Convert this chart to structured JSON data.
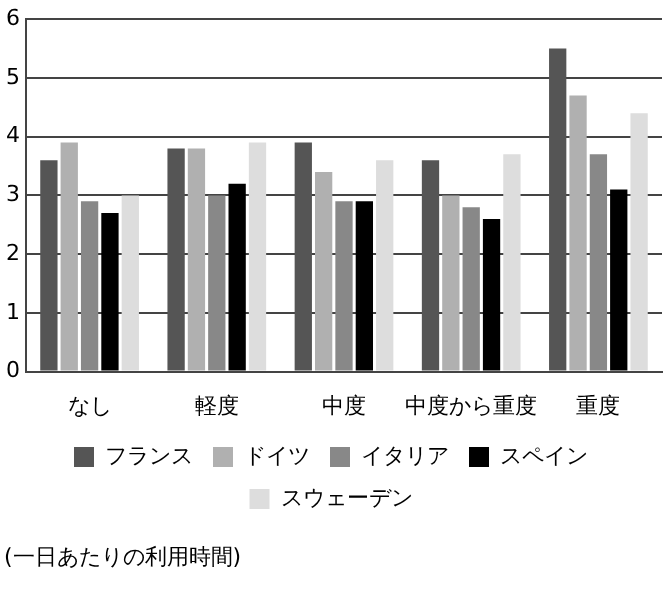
{
  "chart_data": {
    "type": "bar",
    "categories": [
      "なし",
      "軽度",
      "中度",
      "中度から重度",
      "重度"
    ],
    "series": [
      {
        "name": "フランス",
        "color": "#555555",
        "values": [
          3.6,
          3.8,
          3.9,
          3.6,
          5.5
        ]
      },
      {
        "name": "ドイツ",
        "color": "#b0b0b0",
        "values": [
          3.9,
          3.8,
          3.4,
          3.0,
          4.7
        ]
      },
      {
        "name": "イタリア",
        "color": "#888888",
        "values": [
          2.9,
          3.0,
          2.9,
          2.8,
          3.7
        ]
      },
      {
        "name": "スペイン",
        "color": "#000000",
        "values": [
          2.7,
          3.2,
          2.9,
          2.6,
          3.1
        ]
      },
      {
        "name": "スウェーデン",
        "color": "#dddddd",
        "values": [
          3.0,
          3.9,
          3.6,
          3.7,
          4.4
        ]
      }
    ],
    "ylim": [
      0,
      6
    ],
    "yticks": [
      0,
      1,
      2,
      3,
      4,
      5,
      6
    ],
    "grid": "y",
    "legend": "bottom",
    "annotations": [
      "(一日あたりの利用時間)"
    ]
  }
}
